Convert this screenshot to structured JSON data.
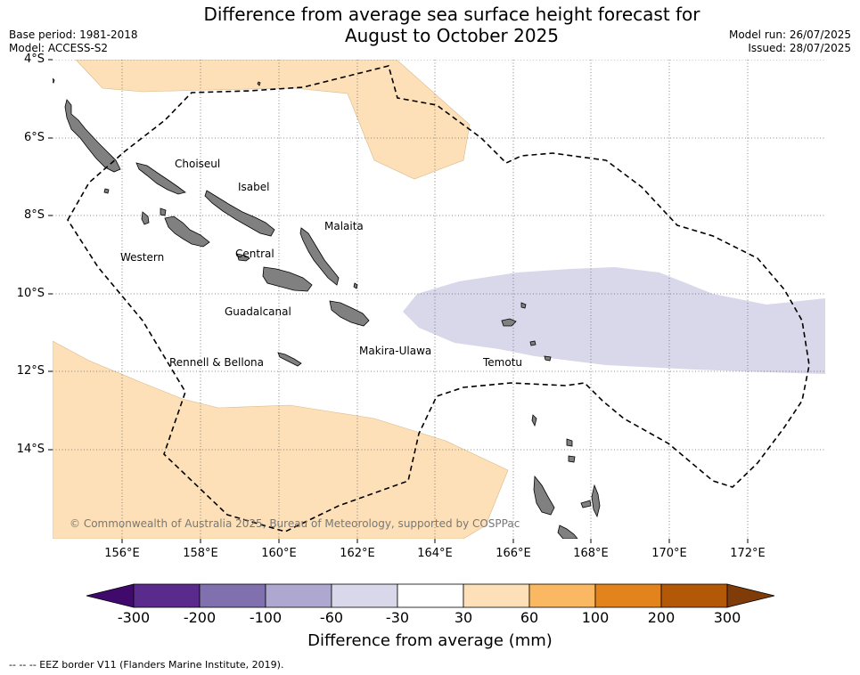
{
  "title_line1": "Difference from average sea surface height forecast for",
  "title_line2": "August to October 2025",
  "base_period": "Base period: 1981-2018",
  "model": "Model: ACCESS-S2",
  "model_run": "Model run: 26/07/2025",
  "issued": "Issued: 28/07/2025",
  "lat_labels": [
    "4°S",
    "6°S",
    "8°S",
    "10°S",
    "12°S",
    "14°S"
  ],
  "lon_labels": [
    "156°E",
    "158°E",
    "160°E",
    "162°E",
    "164°E",
    "166°E",
    "168°E",
    "170°E",
    "172°E"
  ],
  "places": {
    "choiseul": "Choiseul",
    "isabel": "Isabel",
    "malaita": "Malaita",
    "western": "Western",
    "central": "Central",
    "guadalcanal": "Guadalcanal",
    "makira": "Makira-Ulawa",
    "rennell": "Rennell & Bellona",
    "temotu": "Temotu"
  },
  "copyright": "© Commonwealth of Australia 2025, Bureau of Meteorology, supported by COSPPac",
  "colorbar": {
    "label": "Difference from average (mm)",
    "ticks": [
      "-300",
      "-200",
      "-100",
      "-60",
      "-30",
      "30",
      "60",
      "100",
      "200",
      "300"
    ],
    "colors": [
      "#3f0a6b",
      "#5a2a8c",
      "#8070ad",
      "#aea8d0",
      "#d8d8ea",
      "#ffffff",
      "#fde0b8",
      "#fbb862",
      "#e2841b",
      "#b35806",
      "#7f3b08"
    ]
  },
  "footer": "--  --  -- EEZ border V11 (Flanders Marine Institute, 2019).",
  "colors": {
    "positive_anomaly": "#fde0b8",
    "negative_anomaly": "#d8d8ea",
    "land": "#808080"
  }
}
